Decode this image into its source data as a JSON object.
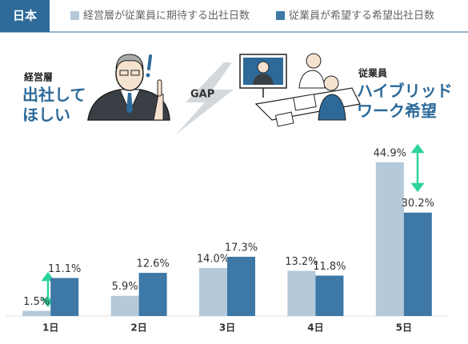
{
  "chart_data": {
    "type": "bar",
    "title": "日本",
    "categories": [
      "1日",
      "2日",
      "3日",
      "4日",
      "5日"
    ],
    "series": [
      {
        "name": "経営層が従業員に期待する出社日数",
        "color": "#b4c9da",
        "values": [
          1.5,
          5.9,
          14.0,
          13.2,
          44.9
        ],
        "value_labels": [
          "1.5%",
          "5.9%",
          "14.0%",
          "13.2%",
          "44.9%"
        ]
      },
      {
        "name": "従業員が希望する希望出社日数",
        "color": "#3d78a6",
        "values": [
          11.1,
          12.6,
          17.3,
          11.8,
          30.2
        ],
        "value_labels": [
          "11.1%",
          "12.6%",
          "17.3%",
          "11.8%",
          "30.2%"
        ]
      }
    ],
    "ylim": [
      0,
      50
    ],
    "annotations": {
      "left_label": "経営層",
      "left_lines": [
        "出社して",
        "ほしい"
      ],
      "gap": "GAP",
      "right_label": "従業員",
      "right_lines": [
        "ハイブリッド",
        "ワーク希望"
      ]
    }
  }
}
